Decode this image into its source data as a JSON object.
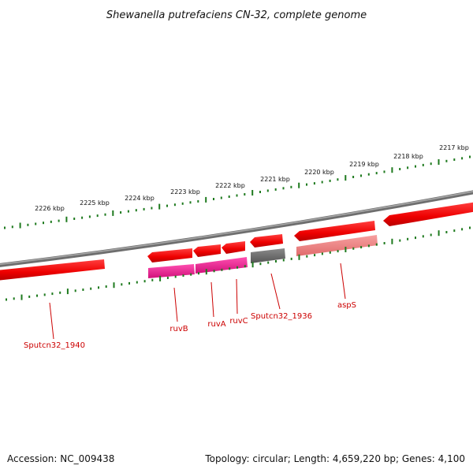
{
  "title": "Shewanella putrefaciens CN-32, complete genome",
  "accession_label": "Accession: NC_009438",
  "summary_label": "Topology: circular; Length: 4,659,220 bp; Genes: 4,100",
  "colors": {
    "forward_cds": "#ff0000",
    "rna_gene": "#ff1493",
    "other_gene": "#777777",
    "faded_cds": "#f08080",
    "backbone": "#808080",
    "ticks": "#1e7a1e",
    "labels": "#cc0000"
  },
  "outer_tick_labels": [
    "2226 kbp",
    "2225 kbp",
    "2224 kbp",
    "2223 kbp",
    "2222 kbp",
    "2221 kbp",
    "2220 kbp",
    "2219 kbp",
    "2218 kbp",
    "2217 kbp"
  ],
  "gene_labels": [
    "Sputcn32_1940",
    "ruvB",
    "ruvA",
    "ruvC",
    "Sputcn32_1936",
    "aspS"
  ]
}
